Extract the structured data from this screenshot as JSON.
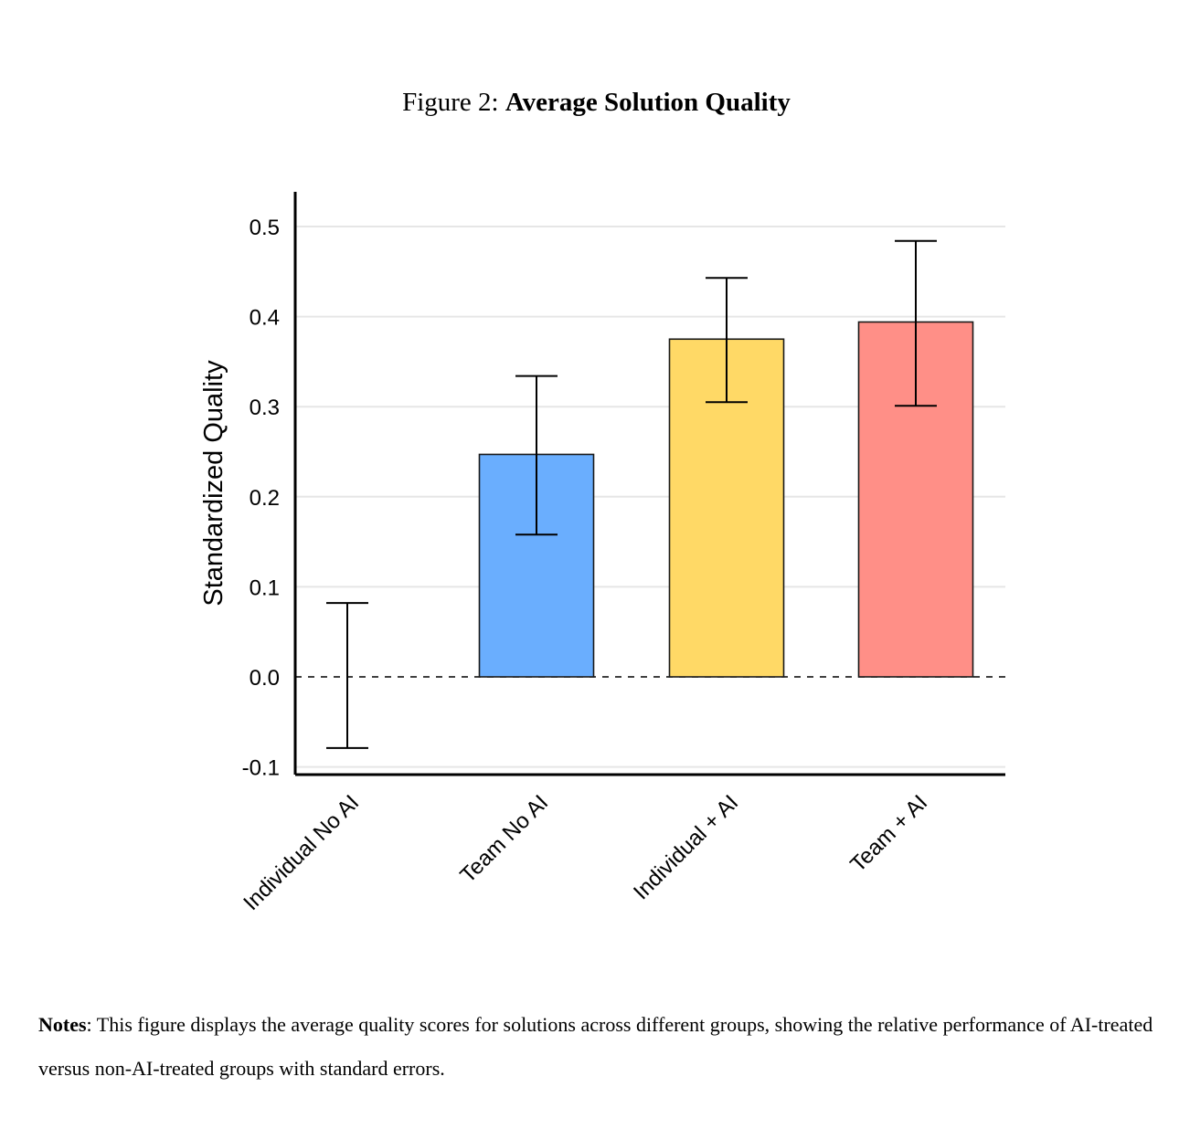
{
  "figure": {
    "label": "Figure 2:",
    "title": "Average Solution Quality"
  },
  "notes": {
    "label": "Notes",
    "text": ": This figure displays the average quality scores for solutions across different groups, showing the relative performance of AI-treated versus non-AI-treated groups with standard errors."
  },
  "chart_data": {
    "type": "bar",
    "title": "Average Solution Quality",
    "xlabel": "",
    "ylabel": "Standardized Quality",
    "ylim": [
      -0.11,
      0.54
    ],
    "yticks": [
      -0.1,
      0.0,
      0.1,
      0.2,
      0.3,
      0.4,
      0.5
    ],
    "ytick_labels": [
      "-0.1",
      "0.0",
      "0.1",
      "0.2",
      "0.3",
      "0.4",
      "0.5"
    ],
    "grid": true,
    "reference_line": 0.0,
    "categories": [
      "Individual No AI",
      "Team No AI",
      "Individual + AI",
      "Team + AI"
    ],
    "values": [
      0.0,
      0.247,
      0.375,
      0.394
    ],
    "error_low": [
      -0.079,
      0.158,
      0.305,
      0.301
    ],
    "error_high": [
      0.082,
      0.334,
      0.443,
      0.484
    ],
    "colors": [
      "#cccccc",
      "#6aaefe",
      "#ffd966",
      "#ff8f87"
    ]
  }
}
